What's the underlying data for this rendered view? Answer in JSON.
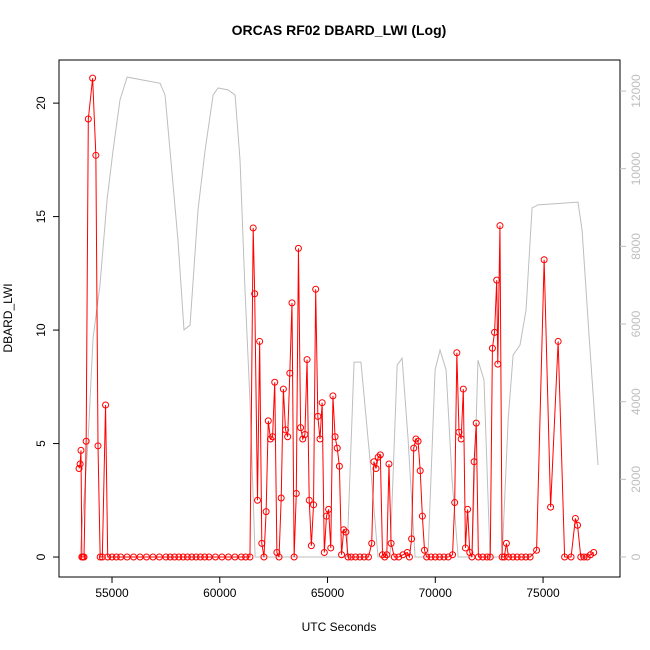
{
  "chart_data": {
    "type": "line",
    "title": "ORCAS RF02 DBARD_LWI (Log)",
    "x_label": "UTC Seconds",
    "y_label": "DBARD_LWI",
    "xlim": [
      52540,
      78570
    ],
    "ylim": [
      -0.88,
      21.9
    ],
    "y2lim": [
      -515,
      12800
    ],
    "xticks": [
      55000,
      60000,
      65000,
      70000,
      75000
    ],
    "yticks": [
      0,
      5,
      10,
      15,
      20
    ],
    "y2ticks": [
      0,
      2000,
      4000,
      6000,
      8000,
      10000,
      12000
    ],
    "grid": false,
    "box": true,
    "series": [
      {
        "color": "#bebebe",
        "axis": "y2",
        "markers": false,
        "x": [
          53520,
          53890,
          54120,
          54440,
          54770,
          55050,
          55370,
          55700,
          57230,
          57460,
          57690,
          58060,
          58340,
          58620,
          58990,
          59320,
          59690,
          59920,
          60380,
          60710,
          60940,
          61170,
          61400,
          61640,
          65900,
          66230,
          66550,
          66970,
          67340,
          67900,
          68230,
          68460,
          68740,
          69060,
          69660,
          69990,
          70220,
          70500,
          70780,
          71060,
          71710,
          71980,
          72260,
          72540,
          73100,
          73380,
          73610,
          73930,
          74210,
          74490,
          74770,
          76620,
          76810,
          77180,
          77550
        ],
        "values": [
          50,
          3000,
          5640,
          7000,
          9200,
          10480,
          11770,
          12360,
          12200,
          11900,
          10480,
          8160,
          5850,
          5970,
          8940,
          10480,
          11900,
          12080,
          12030,
          11900,
          10220,
          6880,
          4040,
          0,
          0,
          5020,
          5020,
          2500,
          0,
          0,
          4940,
          5120,
          3010,
          0,
          0,
          4820,
          5330,
          4820,
          1980,
          0,
          0,
          5070,
          4560,
          0,
          0,
          3530,
          5200,
          5460,
          6360,
          8990,
          9070,
          9140,
          8420,
          5330,
          2370
        ]
      },
      {
        "color": "#ff0000",
        "markers": true,
        "x": [
          53470,
          53520,
          53560,
          53600,
          53650,
          53700,
          53800,
          53900,
          54100,
          54250,
          54350,
          54450,
          54550,
          54700,
          54800,
          55000,
          55200,
          55400,
          55700,
          56000,
          56300,
          56600,
          56900,
          57200,
          57500,
          57700,
          57900,
          58100,
          58300,
          58500,
          58700,
          58900,
          59100,
          59300,
          59500,
          59800,
          60100,
          60400,
          60700,
          61000,
          61200,
          61400,
          61550,
          61620,
          61750,
          61850,
          61950,
          62050,
          62150,
          62250,
          62350,
          62450,
          62550,
          62650,
          62750,
          62850,
          62950,
          63050,
          63150,
          63250,
          63350,
          63450,
          63550,
          63650,
          63750,
          63850,
          63950,
          64050,
          64150,
          64250,
          64350,
          64450,
          64550,
          64650,
          64750,
          64850,
          64950,
          65050,
          65150,
          65250,
          65350,
          65450,
          65550,
          65650,
          65750,
          65850,
          65950,
          66100,
          66300,
          66500,
          66700,
          66900,
          67050,
          67150,
          67250,
          67350,
          67450,
          67550,
          67650,
          67750,
          67850,
          67950,
          68100,
          68300,
          68500,
          68700,
          68800,
          68900,
          69000,
          69100,
          69200,
          69300,
          69400,
          69500,
          69600,
          69800,
          70000,
          70200,
          70400,
          70600,
          70800,
          70900,
          71000,
          71100,
          71200,
          71300,
          71400,
          71500,
          71600,
          71700,
          71800,
          71900,
          72000,
          72200,
          72400,
          72550,
          72650,
          72750,
          72850,
          72900,
          73000,
          73100,
          73200,
          73300,
          73400,
          73600,
          73800,
          74000,
          74200,
          74400,
          74700,
          75050,
          75350,
          75700,
          76000,
          76300,
          76500,
          76600,
          76750,
          76900,
          77050,
          77200,
          77350
        ],
        "values": [
          3.9,
          4.1,
          4.7,
          0,
          0,
          0,
          5.1,
          19.3,
          21.1,
          17.7,
          4.9,
          0,
          0,
          6.7,
          0,
          0,
          0,
          0,
          0,
          0,
          0,
          0,
          0,
          0,
          0,
          0,
          0,
          0,
          0,
          0,
          0,
          0,
          0,
          0,
          0,
          0,
          0,
          0,
          0,
          0,
          0,
          0,
          14.5,
          11.6,
          2.5,
          9.5,
          0.6,
          0,
          2.0,
          6.0,
          5.2,
          5.3,
          7.7,
          0.2,
          0,
          2.6,
          7.4,
          5.6,
          5.3,
          8.1,
          11.2,
          0,
          2.8,
          13.6,
          5.7,
          5.2,
          5.4,
          8.7,
          2.5,
          0.5,
          2.3,
          11.8,
          6.2,
          5.2,
          6.8,
          0.2,
          1.8,
          2.1,
          0.4,
          7.1,
          5.3,
          4.8,
          4.0,
          0.1,
          1.2,
          1.1,
          0,
          0,
          0,
          0,
          0,
          0,
          0.6,
          4.2,
          3.9,
          4.4,
          4.5,
          0.1,
          0,
          0.1,
          4.1,
          0.6,
          0,
          0,
          0.1,
          0.2,
          0,
          0.8,
          4.8,
          5.2,
          5.1,
          3.8,
          1.8,
          0.3,
          0,
          0,
          0,
          0,
          0,
          0,
          0.1,
          2.4,
          9.0,
          5.5,
          5.2,
          7.4,
          0.4,
          2.1,
          0.2,
          0,
          4.2,
          5.9,
          0,
          0,
          0,
          0,
          9.2,
          9.9,
          12.2,
          8.5,
          14.6,
          0,
          0,
          0.6,
          0,
          0,
          0,
          0,
          0,
          0,
          0.3,
          13.1,
          2.2,
          9.5,
          0,
          0,
          1.7,
          1.4,
          0,
          0,
          0,
          0.1,
          0.2
        ]
      }
    ]
  }
}
